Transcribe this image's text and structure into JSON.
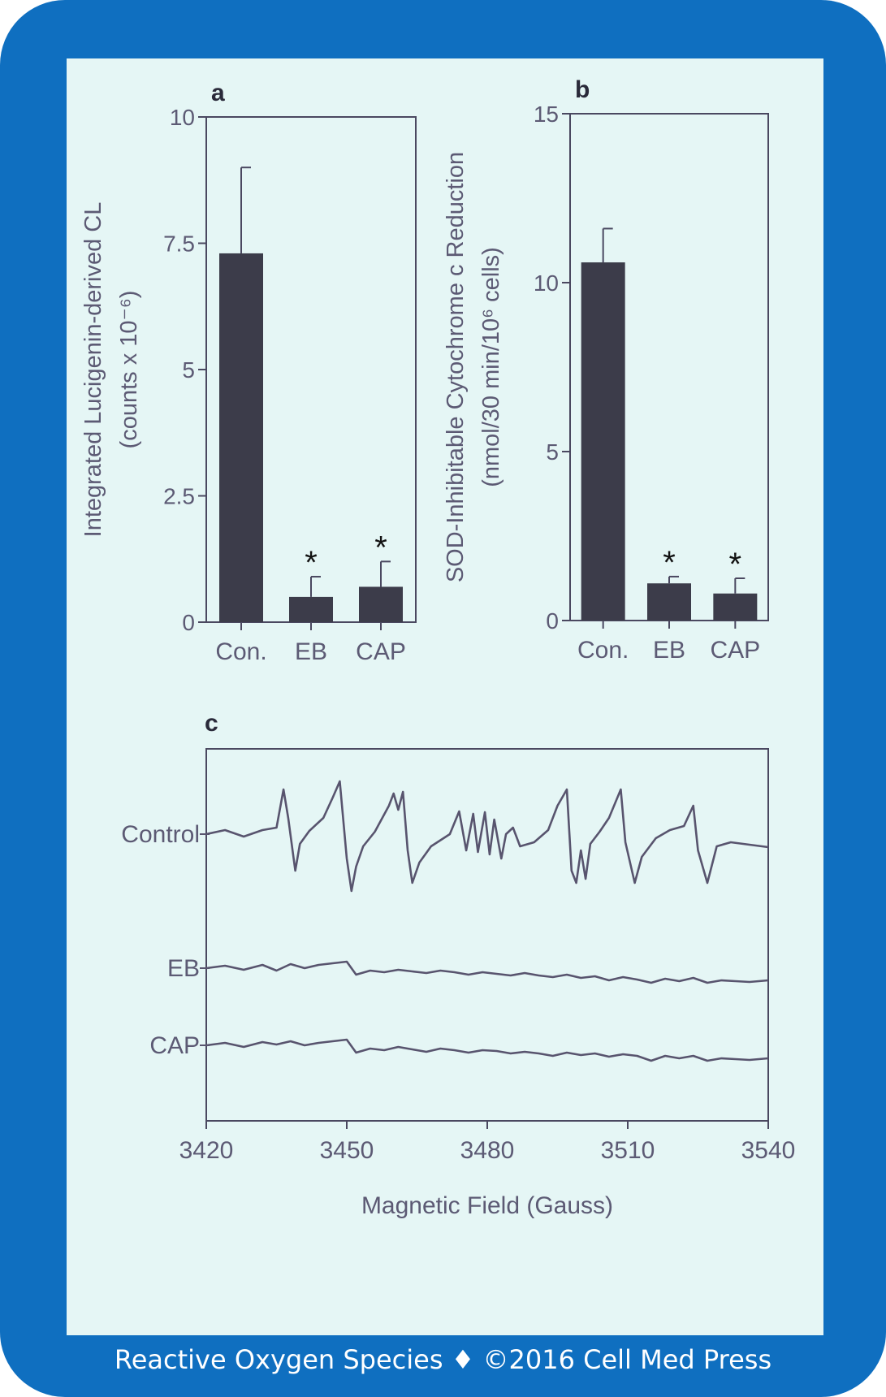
{
  "footer": {
    "text": "Reactive Oxygen Species ♦ ©2016 Cell Med Press"
  },
  "colors": {
    "border": "#0f6fc0",
    "panel": "#e5f6f5",
    "ink": "#4a4860",
    "bar": "#3c3c4a",
    "trace": "#58546e"
  },
  "chart_data": [
    {
      "panel_label": "a",
      "type": "bar",
      "categories": [
        "Con.",
        "EB",
        "CAP"
      ],
      "values": [
        7.3,
        0.5,
        0.7
      ],
      "errors": [
        1.7,
        0.4,
        0.5
      ],
      "significance": [
        "",
        "*",
        "*"
      ],
      "ylabel_line1": "Integrated Lucigenin-derived CL",
      "ylabel_line2": "(counts x 10⁻⁶)",
      "yticks": [
        "0",
        "2.5",
        "5",
        "7.5",
        "10"
      ],
      "ylim": [
        0,
        10
      ]
    },
    {
      "panel_label": "b",
      "type": "bar",
      "categories": [
        "Con.",
        "EB",
        "CAP"
      ],
      "values": [
        10.6,
        1.1,
        0.8
      ],
      "errors": [
        1.0,
        0.2,
        0.45
      ],
      "significance": [
        "",
        "*",
        "*"
      ],
      "ylabel_line1": "SOD-Inhibitable Cytochrome c Reduction",
      "ylabel_line2": "(nmol/30 min/10⁶ cells)",
      "yticks": [
        "0",
        "5",
        "10",
        "15"
      ],
      "ylim": [
        0,
        15
      ]
    },
    {
      "panel_label": "c",
      "type": "line",
      "xlabel": "Magnetic Field (Gauss)",
      "xticks": [
        "3420",
        "3450",
        "3480",
        "3510",
        "3540"
      ],
      "xlim": [
        3420,
        3540
      ],
      "series": [
        {
          "name": "Control",
          "x": [
            3420,
            3424,
            3428,
            3432,
            3435,
            3436.5,
            3437.5,
            3439,
            3440,
            3442,
            3445,
            3447,
            3448.5,
            3450,
            3451,
            3452,
            3453.5,
            3456,
            3459,
            3460,
            3461,
            3462,
            3463,
            3464,
            3465.5,
            3468,
            3472,
            3474,
            3475.5,
            3477,
            3478,
            3479.5,
            3480.5,
            3481.5,
            3483,
            3484,
            3485.5,
            3487,
            3490,
            3493,
            3495,
            3497,
            3498,
            3499,
            3500,
            3501,
            3502,
            3504,
            3506,
            3508.5,
            3509.5,
            3511.5,
            3513,
            3516,
            3519,
            3522,
            3524,
            3525,
            3527,
            3529,
            3532,
            3536,
            3540
          ],
          "y": [
            0,
            0.5,
            -0.3,
            0.5,
            0.8,
            5.5,
            2,
            -4.5,
            -1.2,
            0.4,
            2,
            4.5,
            6.5,
            -3,
            -7,
            -4,
            -1.5,
            0.3,
            3.5,
            5,
            3,
            5.2,
            -2,
            -6,
            -3.5,
            -1.5,
            0,
            2.8,
            -2,
            2.5,
            -2.2,
            2.7,
            -2.5,
            1.8,
            -3,
            0,
            0.8,
            -1.5,
            -1,
            0.5,
            3.5,
            5.5,
            -4.5,
            -6,
            -2,
            -5.5,
            -1.2,
            0.3,
            2,
            5.5,
            -1,
            -6,
            -2.8,
            -0.5,
            0.5,
            1,
            3.5,
            -2,
            -6,
            -1.5,
            -1,
            -1.3,
            -1.6
          ]
        },
        {
          "name": "EB",
          "x": [
            3420,
            3424,
            3428,
            3432,
            3435,
            3438,
            3441,
            3444,
            3447,
            3450,
            3452,
            3455,
            3458,
            3461,
            3464,
            3467,
            3470,
            3473,
            3476,
            3479,
            3482,
            3485,
            3488,
            3491,
            3494,
            3497,
            3500,
            3503,
            3506,
            3509,
            3512,
            3515,
            3518,
            3521,
            3524,
            3527,
            3530,
            3533,
            3536,
            3540
          ],
          "y": [
            0,
            0.3,
            -0.2,
            0.4,
            -0.3,
            0.5,
            0,
            0.4,
            0.6,
            0.8,
            -0.8,
            -0.3,
            -0.5,
            -0.2,
            -0.4,
            -0.6,
            -0.3,
            -0.5,
            -0.8,
            -0.5,
            -0.7,
            -0.9,
            -0.6,
            -0.9,
            -1.1,
            -0.8,
            -1.2,
            -1,
            -1.5,
            -1.1,
            -1.4,
            -1.8,
            -1.3,
            -1.6,
            -1.2,
            -1.8,
            -1.5,
            -1.6,
            -1.7,
            -1.5
          ]
        },
        {
          "name": "CAP",
          "x": [
            3420,
            3424,
            3428,
            3432,
            3435,
            3438,
            3441,
            3444,
            3447,
            3450,
            3452,
            3455,
            3458,
            3461,
            3464,
            3467,
            3470,
            3473,
            3476,
            3479,
            3482,
            3485,
            3488,
            3491,
            3494,
            3497,
            3500,
            3503,
            3506,
            3509,
            3512,
            3515,
            3518,
            3521,
            3524,
            3527,
            3530,
            3533,
            3536,
            3540
          ],
          "y": [
            0,
            0.3,
            -0.2,
            0.4,
            0.1,
            0.5,
            0,
            0.3,
            0.5,
            0.7,
            -0.9,
            -0.4,
            -0.6,
            -0.2,
            -0.5,
            -0.8,
            -0.4,
            -0.6,
            -0.9,
            -0.6,
            -0.7,
            -1.0,
            -0.8,
            -1.0,
            -1.3,
            -0.9,
            -1.2,
            -1.0,
            -1.4,
            -1.1,
            -1.3,
            -1.9,
            -1.3,
            -1.6,
            -1.3,
            -1.9,
            -1.6,
            -1.7,
            -1.8,
            -1.6
          ]
        }
      ]
    }
  ]
}
